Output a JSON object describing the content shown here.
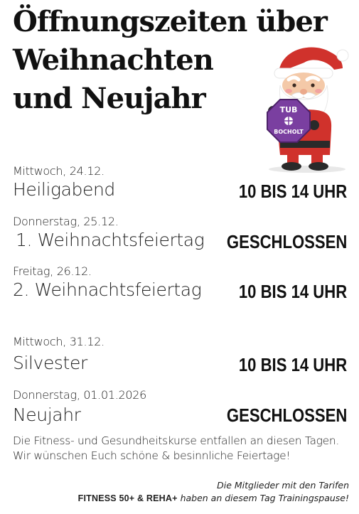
{
  "title": {
    "line1": "Öffnungszeiten über",
    "line2": "Weihnachten",
    "line3": "und Neujahr"
  },
  "logo": {
    "text_top": "TUB",
    "text_bottom": "BOCHOLT"
  },
  "days": [
    {
      "date": "Mittwoch, 24.12.",
      "name": "Heiligabend",
      "hours": "10 BIS 14 UHR"
    },
    {
      "date": "Donnerstag, 25.12.",
      "name": "1. Weihnachtsfeiertag",
      "hours": "GESCHLOSSEN"
    },
    {
      "date": "Freitag, 26.12.",
      "name": "2. Weihnachtsfeiertag",
      "hours": "10 BIS 14 UHR"
    },
    {
      "date": "Mittwoch, 31.12.",
      "name": "Silvester",
      "hours": "10 BIS 14 UHR"
    },
    {
      "date": "Donnerstag, 01.01.2026",
      "name": "Neujahr",
      "hours": "GESCHLOSSEN"
    }
  ],
  "notice": {
    "line1": "Die Fitness- und Gesundheitskurse entfallen an diesen Tagen.",
    "line2": "Wir wünschen Euch schöne & besinnliche Feiertage!"
  },
  "footer": {
    "line1": "Die Mitglieder mit den Tarifen",
    "tariffs": "FITNESS 50+ & REHA+",
    "line2_rest": " haben an diesem Tag Trainingspause!"
  },
  "colors": {
    "text": "#111111",
    "santa_red": "#d0322c",
    "logo_purple": "#7a3fa0"
  }
}
